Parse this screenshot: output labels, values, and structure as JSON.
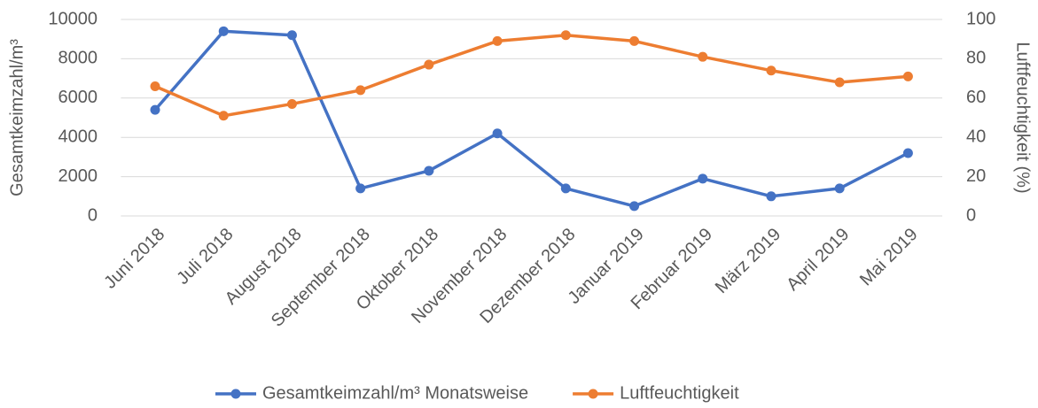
{
  "chart_data": {
    "type": "line",
    "categories": [
      "Juni 2018",
      "Juli 2018",
      "August 2018",
      "September 2018",
      "Oktober 2018",
      "November 2018",
      "Dezember 2018",
      "Januar 2019",
      "Februar 2019",
      "März 2019",
      "April 2019",
      "Mai 2019"
    ],
    "series": [
      {
        "name": "Gesamtkeimzahl/m³ Monatsweise",
        "color": "#4472c4",
        "values": [
          5400,
          9400,
          9200,
          1400,
          2300,
          4200,
          1400,
          500,
          1900,
          1000,
          1400,
          3200
        ]
      },
      {
        "name": "Luftfeuchtigkeit",
        "color": "#ed7d31",
        "axis": "y2",
        "values": [
          66,
          51,
          57,
          64,
          77,
          89,
          92,
          89,
          81,
          74,
          68,
          71
        ]
      }
    ],
    "ylabel": "Gesamtkeimzahl/m³",
    "y2label": "Luftfeuchtigkeit (%)",
    "ylim": [
      0,
      10000
    ],
    "yticks": [
      0,
      2000,
      4000,
      6000,
      8000,
      10000
    ],
    "y2lim": [
      0,
      100
    ],
    "y2ticks": [
      0,
      20,
      40,
      60,
      80,
      100
    ],
    "grid": true,
    "legend": "bottom"
  }
}
